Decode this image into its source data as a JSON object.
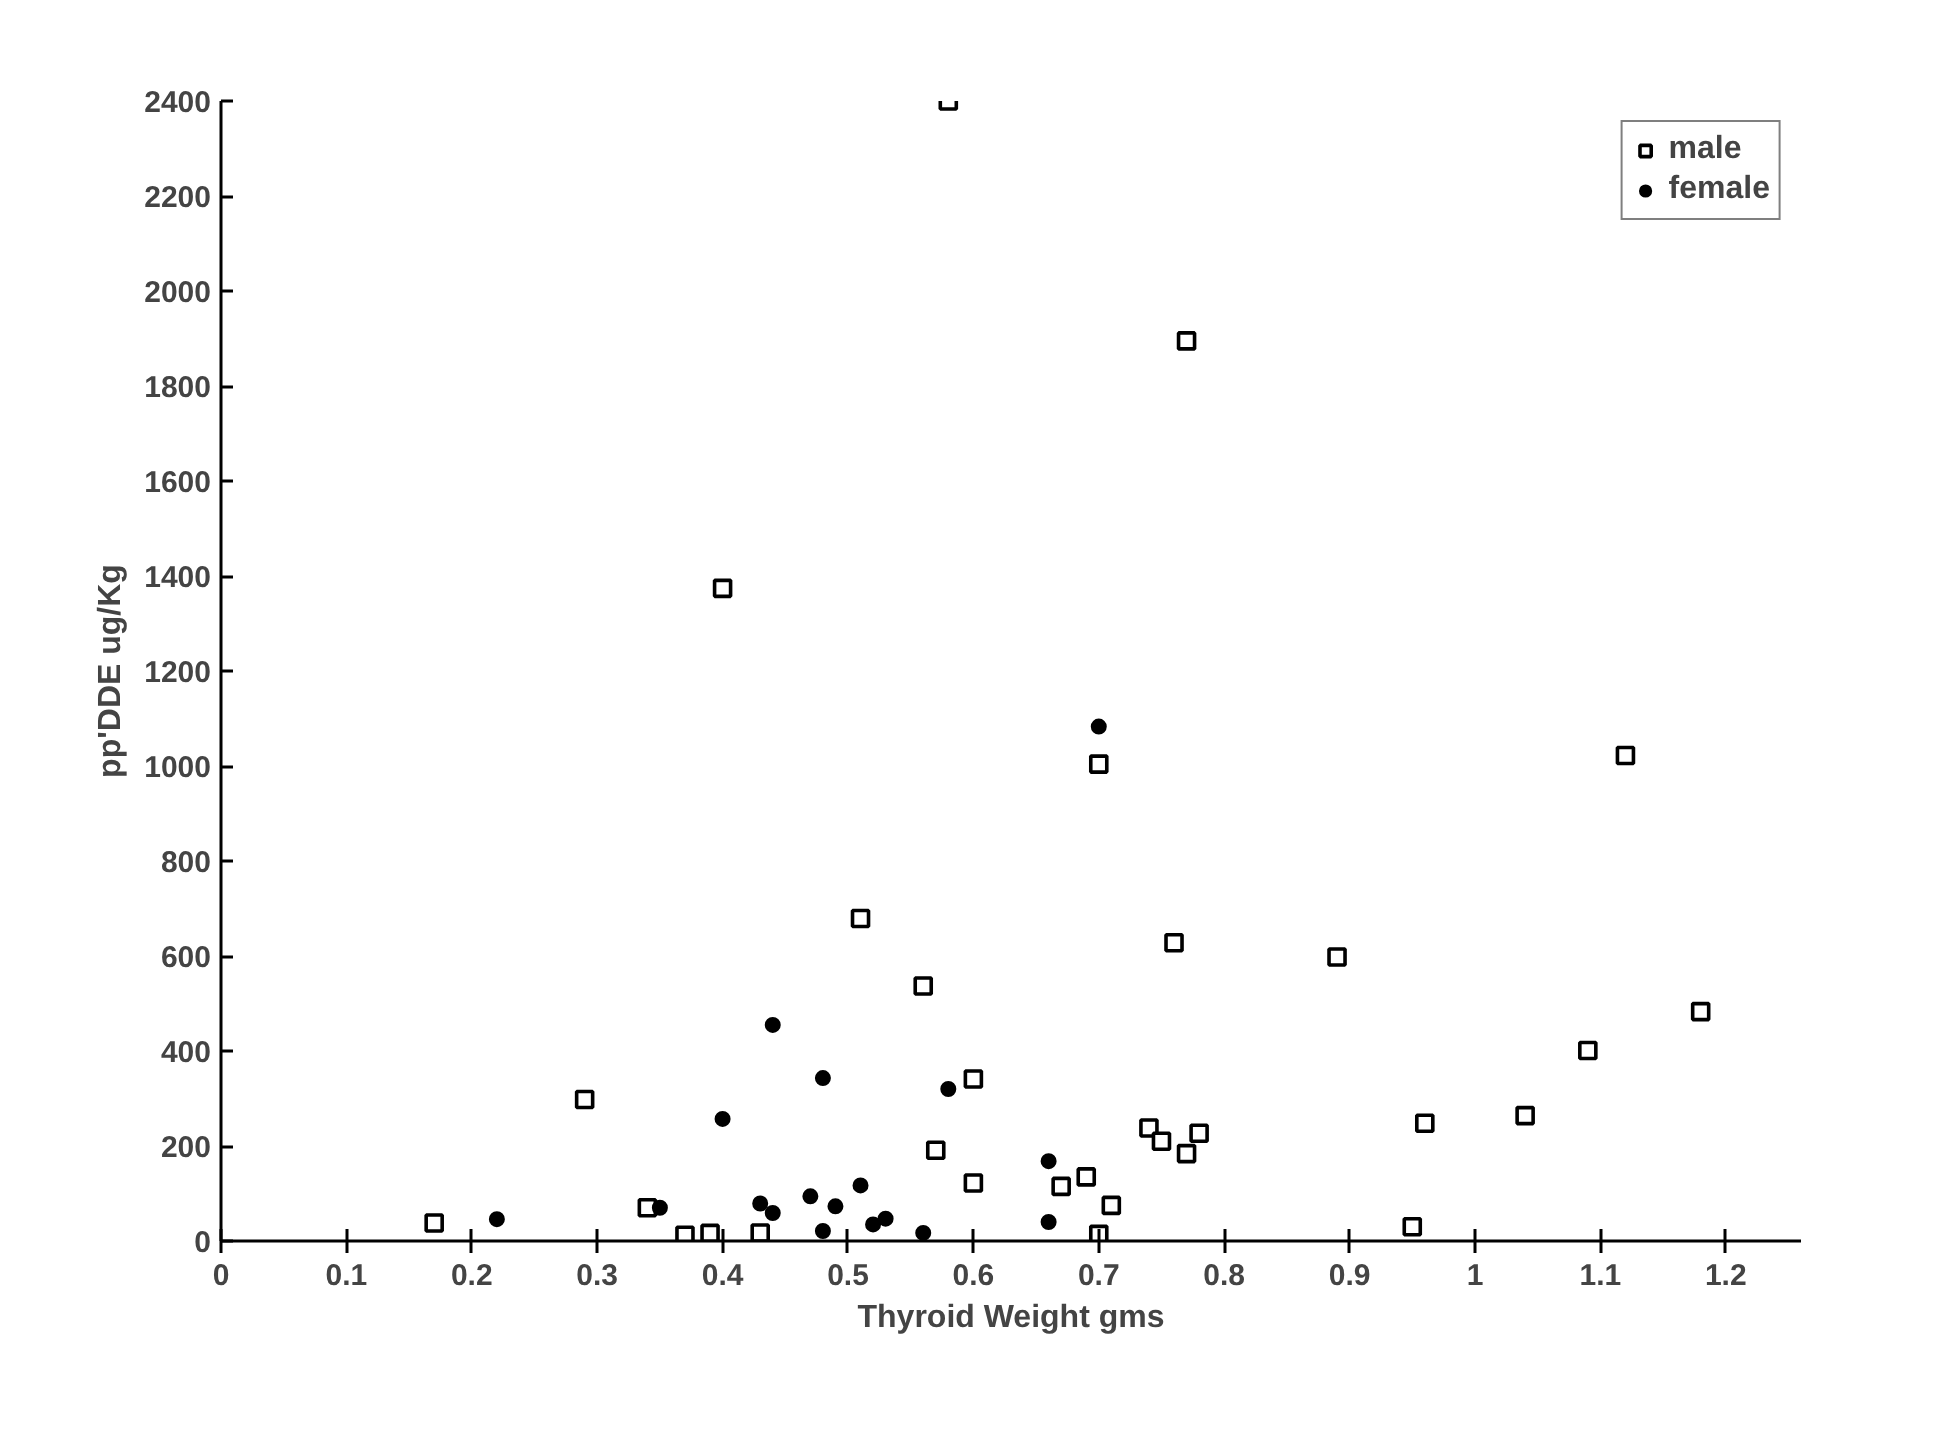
{
  "chart_data": {
    "type": "scatter",
    "xlabel": "Thyroid Weight gms",
    "ylabel": "pp'DDE ug/Kg",
    "xlim": [
      0,
      1.26
    ],
    "ylim": [
      0,
      2400
    ],
    "xticks": [
      0,
      0.1,
      0.2,
      0.3,
      0.4,
      0.5,
      0.6,
      0.7,
      0.8,
      0.9,
      1,
      1.1,
      1.2
    ],
    "yticks": [
      0,
      200,
      400,
      600,
      800,
      1000,
      1200,
      1400,
      1600,
      1800,
      2000,
      2200,
      2400
    ],
    "grid": false,
    "legend": "top right",
    "series": [
      {
        "name": "male",
        "color": "#000000",
        "marker": "square",
        "x": [
          0.17,
          0.29,
          0.34,
          0.37,
          0.39,
          0.4,
          0.43,
          0.51,
          0.56,
          0.57,
          0.58,
          0.6,
          0.6,
          0.67,
          0.69,
          0.7,
          0.7,
          0.71,
          0.74,
          0.75,
          0.77,
          0.76,
          0.78,
          0.77,
          0.89,
          0.95,
          0.96,
          1.04,
          1.09,
          1.12,
          1.18
        ],
        "values": [
          38,
          298,
          70,
          12,
          16,
          1374,
          17,
          679,
          537,
          191,
          2400,
          341,
          122,
          115,
          135,
          14,
          1004,
          75,
          238,
          210,
          184,
          628,
          227,
          1895,
          598,
          30,
          248,
          264,
          401,
          1022,
          483
        ]
      },
      {
        "name": "female",
        "color": "#000000",
        "marker": "circle",
        "x": [
          0.22,
          0.35,
          0.4,
          0.43,
          0.44,
          0.44,
          0.47,
          0.48,
          0.48,
          0.49,
          0.51,
          0.52,
          0.53,
          0.56,
          0.58,
          0.66,
          0.66,
          0.7
        ],
        "values": [
          46,
          70,
          257,
          79,
          59,
          455,
          94,
          343,
          21,
          73,
          117,
          35,
          47,
          17,
          320,
          168,
          40,
          1083
        ]
      }
    ]
  }
}
